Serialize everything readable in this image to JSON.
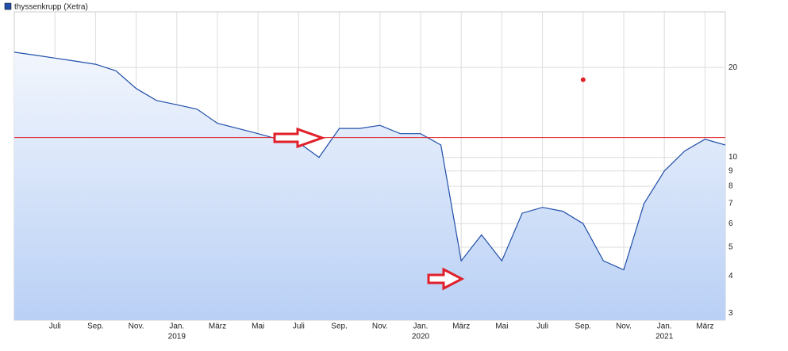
{
  "chart_data": {
    "type": "line",
    "title": "thyssenkrupp (Xetra)",
    "x": [
      "2018-05",
      "2018-06",
      "2018-07",
      "2018-08",
      "2018-09",
      "2018-10",
      "2018-11",
      "2018-12",
      "2019-01",
      "2019-02",
      "2019-03",
      "2019-04",
      "2019-05",
      "2019-06",
      "2019-07",
      "2019-08",
      "2019-09",
      "2019-10",
      "2019-11",
      "2019-12",
      "2020-01",
      "2020-02",
      "2020-03",
      "2020-04",
      "2020-05",
      "2020-06",
      "2020-07",
      "2020-08",
      "2020-09",
      "2020-10",
      "2020-11",
      "2020-12",
      "2021-01",
      "2021-02",
      "2021-03",
      "2021-04"
    ],
    "series": [
      {
        "name": "thyssenkrupp (Xetra)",
        "color": "#1f4fa8",
        "values": [
          22.5,
          22,
          21.5,
          21,
          20.5,
          19.5,
          17,
          15.5,
          15,
          14.5,
          13,
          12.5,
          12,
          11.5,
          11.2,
          10,
          12.5,
          12.5,
          12.8,
          12,
          12,
          11,
          4.5,
          5.5,
          4.5,
          6.5,
          6.8,
          6.6,
          6,
          4.5,
          4.2,
          7,
          9,
          10.5,
          11.5,
          11
        ]
      }
    ],
    "xlim": [
      "2018-05",
      "2021-04"
    ],
    "xticks": [
      {
        "value": "2018-07",
        "label": "Juli"
      },
      {
        "value": "2018-09",
        "label": "Sep."
      },
      {
        "value": "2018-11",
        "label": "Nov."
      },
      {
        "value": "2019-01",
        "label": "Jan."
      },
      {
        "value": "2019-03",
        "label": "März"
      },
      {
        "value": "2019-05",
        "label": "Mai"
      },
      {
        "value": "2019-07",
        "label": "Juli"
      },
      {
        "value": "2019-09",
        "label": "Sep."
      },
      {
        "value": "2019-11",
        "label": "Nov."
      },
      {
        "value": "2020-01",
        "label": "Jan."
      },
      {
        "value": "2020-03",
        "label": "März"
      },
      {
        "value": "2020-05",
        "label": "Mai"
      },
      {
        "value": "2020-07",
        "label": "Juli"
      },
      {
        "value": "2020-09",
        "label": "Sep."
      },
      {
        "value": "2020-11",
        "label": "Nov."
      },
      {
        "value": "2021-01",
        "label": "Jan."
      },
      {
        "value": "2021-03",
        "label": "März"
      }
    ],
    "year_labels": [
      {
        "value": "2019-01",
        "label": "2019"
      },
      {
        "value": "2020-01",
        "label": "2020"
      },
      {
        "value": "2021-01",
        "label": "2021"
      }
    ],
    "ylim": [
      2.85,
      30.7
    ],
    "log_scale": true,
    "grid": true,
    "yticks": [
      3,
      4,
      5,
      6,
      7,
      8,
      9,
      10,
      20
    ],
    "reference_line": {
      "value": 11.65,
      "color": "#e0202a"
    },
    "marker": {
      "x": "2020-09",
      "y": 18.2,
      "color": "#e0202a"
    }
  }
}
